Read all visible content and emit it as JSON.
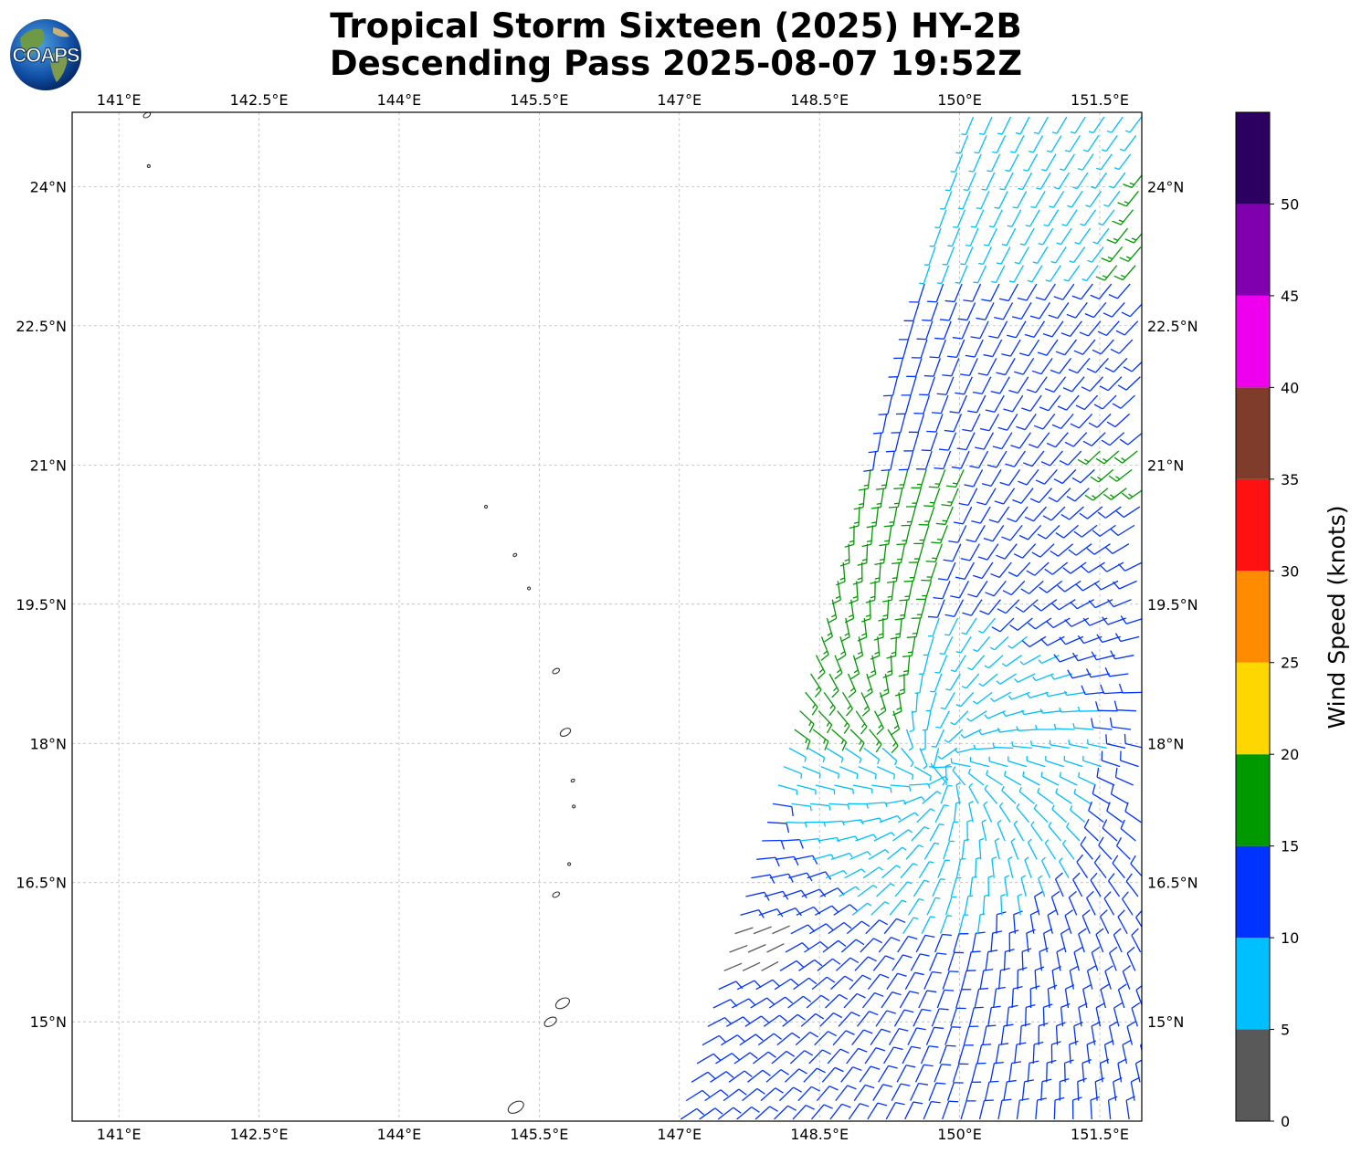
{
  "header": {
    "logo_text": "COAPS",
    "title_line1": "Tropical Storm Sixteen (2025) HY-2B",
    "title_line2": "Descending Pass 2025-08-07 19:52Z"
  },
  "map": {
    "lon_range": [
      140.5,
      151.95
    ],
    "lat_range": [
      13.93,
      24.8
    ],
    "lon_ticks": [
      {
        "value": 141.0,
        "label": "141°E"
      },
      {
        "value": 142.5,
        "label": "142.5°E"
      },
      {
        "value": 144.0,
        "label": "144°E"
      },
      {
        "value": 145.5,
        "label": "145.5°E"
      },
      {
        "value": 147.0,
        "label": "147°E"
      },
      {
        "value": 148.5,
        "label": "148.5°E"
      },
      {
        "value": 150.0,
        "label": "150°E"
      },
      {
        "value": 151.5,
        "label": "151.5°E"
      }
    ],
    "lat_ticks": [
      {
        "value": 24.0,
        "label": "24°N"
      },
      {
        "value": 22.5,
        "label": "22.5°N"
      },
      {
        "value": 21.0,
        "label": "21°N"
      },
      {
        "value": 19.5,
        "label": "19.5°N"
      },
      {
        "value": 18.0,
        "label": "18°N"
      },
      {
        "value": 16.5,
        "label": "16.5°N"
      },
      {
        "value": 15.0,
        "label": "15°N"
      }
    ],
    "islands": [
      {
        "lon": 145.25,
        "lat": 14.08,
        "size": 0.09
      },
      {
        "lon": 145.62,
        "lat": 15.0,
        "size": 0.07
      },
      {
        "lon": 145.75,
        "lat": 15.2,
        "size": 0.08
      },
      {
        "lon": 145.68,
        "lat": 16.37,
        "size": 0.04
      },
      {
        "lon": 145.82,
        "lat": 16.7,
        "size": 0.015
      },
      {
        "lon": 145.87,
        "lat": 17.32,
        "size": 0.012
      },
      {
        "lon": 145.86,
        "lat": 17.6,
        "size": 0.02
      },
      {
        "lon": 145.78,
        "lat": 18.12,
        "size": 0.06
      },
      {
        "lon": 145.68,
        "lat": 18.78,
        "size": 0.04
      },
      {
        "lon": 145.39,
        "lat": 19.67,
        "size": 0.015
      },
      {
        "lon": 145.24,
        "lat": 20.03,
        "size": 0.02
      },
      {
        "lon": 144.93,
        "lat": 20.55,
        "size": 0.015
      },
      {
        "lon": 141.32,
        "lat": 24.22,
        "size": 0.01
      },
      {
        "lon": 141.3,
        "lat": 24.77,
        "size": 0.04
      }
    ]
  },
  "colorbar": {
    "label": "Wind Speed (knots)",
    "bins": [
      {
        "min": 0,
        "max": 5,
        "color": "#595959"
      },
      {
        "min": 5,
        "max": 10,
        "color": "#00bfff"
      },
      {
        "min": 10,
        "max": 15,
        "color": "#0033ff"
      },
      {
        "min": 15,
        "max": 20,
        "color": "#009900"
      },
      {
        "min": 20,
        "max": 25,
        "color": "#ffd700"
      },
      {
        "min": 25,
        "max": 30,
        "color": "#ff8c00"
      },
      {
        "min": 30,
        "max": 35,
        "color": "#ff1111"
      },
      {
        "min": 35,
        "max": 40,
        "color": "#803c2a"
      },
      {
        "min": 40,
        "max": 45,
        "color": "#ee00ee"
      },
      {
        "min": 45,
        "max": 50,
        "color": "#8000b0"
      },
      {
        "min": 50,
        "max": 55,
        "color": "#2b0060"
      }
    ],
    "tick_labels": [
      "0",
      "5",
      "10",
      "15",
      "20",
      "25",
      "30",
      "35",
      "40",
      "45",
      "50"
    ]
  },
  "colors": {
    "land_outline": "#333333",
    "grid": "#b0b0b0",
    "axis": "#000000"
  }
}
